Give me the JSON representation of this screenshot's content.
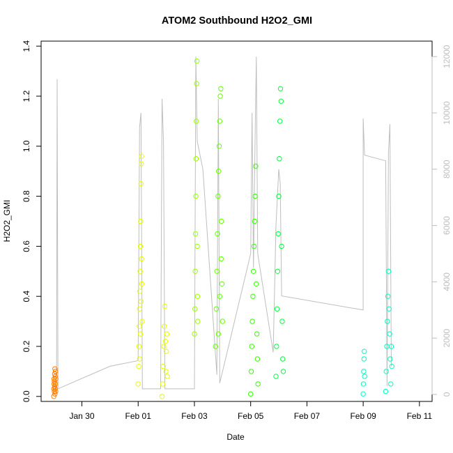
{
  "chart_data": {
    "type": "scatter",
    "title": "ATOM2 Southbound H2O2_GMI",
    "xlabel": "Date",
    "ylabel": "H2O2_GMI",
    "x_ticks": [
      "Jan 30",
      "Feb 01",
      "Feb 03",
      "Feb 05",
      "Feb 07",
      "Feb 09",
      "Feb 11"
    ],
    "x_tick_days": [
      30,
      32,
      34,
      36,
      38,
      40,
      42
    ],
    "xlim_days": [
      28.55,
      42.45
    ],
    "ylim": [
      -0.02,
      1.42
    ],
    "y_ticks": [
      "0.0",
      "0.2",
      "0.4",
      "0.6",
      "0.8",
      "1.0",
      "1.2",
      "1.4"
    ],
    "y_tick_values": [
      0,
      0.2,
      0.4,
      0.6,
      0.8,
      1.0,
      1.2,
      1.4
    ],
    "y2_ticks": [
      "0",
      "2000",
      "4000",
      "6000",
      "8000",
      "10000",
      "12000"
    ],
    "y2_tick_values": [
      0,
      2000,
      4000,
      6000,
      8000,
      10000,
      12000
    ],
    "y2lim": [
      -249,
      12550
    ],
    "grid": false,
    "colors": {
      "altitude_line": "#bebebe",
      "axis_right": "#bdbdbd"
    },
    "series": [
      {
        "color": "#ff7f00",
        "points": [
          [
            29.0,
            0.0
          ],
          [
            29.0,
            0.03
          ],
          [
            29.01,
            0.05
          ],
          [
            29.01,
            0.07
          ],
          [
            29.02,
            0.02
          ],
          [
            29.02,
            0.06
          ],
          [
            29.03,
            0.09
          ],
          [
            29.03,
            0.04
          ],
          [
            29.04,
            0.11
          ],
          [
            29.04,
            0.01
          ],
          [
            29.05,
            0.08
          ],
          [
            29.05,
            0.03
          ],
          [
            29.06,
            0.1
          ],
          [
            29.06,
            0.05
          ],
          [
            29.07,
            0.07
          ],
          [
            29.07,
            0.02
          ]
        ]
      },
      {
        "color": "#e6ff00",
        "points": [
          [
            32.0,
            0.05
          ],
          [
            32.02,
            0.12
          ],
          [
            32.03,
            0.2
          ],
          [
            32.04,
            0.28
          ],
          [
            32.05,
            0.35
          ],
          [
            32.06,
            0.42
          ],
          [
            32.07,
            0.5
          ],
          [
            32.08,
            0.6
          ],
          [
            32.09,
            0.7
          ],
          [
            32.1,
            0.85
          ],
          [
            32.11,
            0.93
          ],
          [
            32.12,
            0.96
          ],
          [
            32.13,
            0.45
          ],
          [
            32.14,
            0.3
          ],
          [
            32.05,
            0.15
          ],
          [
            32.08,
            0.25
          ],
          [
            32.1,
            0.38
          ],
          [
            32.12,
            0.55
          ],
          [
            32.85,
            0.0
          ],
          [
            32.87,
            0.05
          ],
          [
            32.89,
            0.12
          ],
          [
            32.91,
            0.2
          ],
          [
            32.93,
            0.28
          ],
          [
            32.95,
            0.36
          ],
          [
            32.97,
            0.22
          ],
          [
            32.99,
            0.1
          ],
          [
            33.0,
            0.18
          ],
          [
            33.02,
            0.25
          ],
          [
            33.04,
            0.08
          ]
        ]
      },
      {
        "color": "#99ff00",
        "points": [
          [
            34.0,
            0.25
          ],
          [
            34.02,
            0.35
          ],
          [
            34.03,
            0.5
          ],
          [
            34.04,
            0.65
          ],
          [
            34.05,
            0.8
          ],
          [
            34.06,
            0.95
          ],
          [
            34.07,
            1.1
          ],
          [
            34.08,
            1.25
          ],
          [
            34.09,
            1.34
          ],
          [
            34.1,
            0.6
          ],
          [
            34.11,
            0.4
          ],
          [
            34.12,
            0.3
          ]
        ]
      },
      {
        "color": "#66ff00",
        "points": [
          [
            34.75,
            0.2
          ],
          [
            34.78,
            0.35
          ],
          [
            34.8,
            0.5
          ],
          [
            34.82,
            0.65
          ],
          [
            34.84,
            0.8
          ],
          [
            34.86,
            0.9
          ],
          [
            34.88,
            1.0
          ],
          [
            34.9,
            1.1
          ],
          [
            34.92,
            1.2
          ],
          [
            34.94,
            1.23
          ],
          [
            34.96,
            0.7
          ],
          [
            34.98,
            0.45
          ],
          [
            35.0,
            0.3
          ],
          [
            34.85,
            0.25
          ],
          [
            34.9,
            0.4
          ],
          [
            34.95,
            0.55
          ]
        ]
      },
      {
        "color": "#33ff00",
        "points": [
          [
            36.0,
            0.01
          ],
          [
            36.02,
            0.1
          ],
          [
            36.04,
            0.2
          ],
          [
            36.06,
            0.3
          ],
          [
            36.08,
            0.4
          ],
          [
            36.1,
            0.5
          ],
          [
            36.12,
            0.6
          ],
          [
            36.14,
            0.7
          ],
          [
            36.16,
            0.8
          ],
          [
            36.18,
            0.92
          ],
          [
            36.2,
            0.45
          ],
          [
            36.22,
            0.25
          ],
          [
            36.24,
            0.15
          ],
          [
            36.26,
            0.05
          ]
        ]
      },
      {
        "color": "#00ff40",
        "points": [
          [
            36.9,
            0.08
          ],
          [
            36.92,
            0.2
          ],
          [
            36.94,
            0.35
          ],
          [
            36.96,
            0.5
          ],
          [
            36.98,
            0.65
          ],
          [
            37.0,
            0.8
          ],
          [
            37.02,
            0.95
          ],
          [
            37.04,
            1.1
          ],
          [
            37.06,
            1.23
          ],
          [
            37.08,
            1.18
          ],
          [
            37.1,
            0.6
          ],
          [
            37.12,
            0.3
          ],
          [
            37.14,
            0.15
          ],
          [
            37.16,
            0.1
          ]
        ]
      },
      {
        "color": "#00ffc0",
        "points": [
          [
            40.0,
            0.01
          ],
          [
            40.01,
            0.05
          ],
          [
            40.02,
            0.1
          ],
          [
            40.03,
            0.15
          ],
          [
            40.04,
            0.18
          ],
          [
            40.05,
            0.08
          ],
          [
            40.8,
            0.02
          ],
          [
            40.82,
            0.1
          ],
          [
            40.84,
            0.2
          ],
          [
            40.86,
            0.3
          ],
          [
            40.88,
            0.4
          ],
          [
            40.9,
            0.5
          ],
          [
            40.92,
            0.35
          ],
          [
            40.94,
            0.25
          ],
          [
            40.96,
            0.15
          ],
          [
            40.98,
            0.05
          ],
          [
            41.0,
            0.2
          ],
          [
            41.02,
            0.12
          ]
        ]
      }
    ],
    "altitude": [
      [
        29.0,
        500
      ],
      [
        29.05,
        200
      ],
      [
        29.1,
        1000
      ],
      [
        29.12,
        11200
      ],
      [
        29.15,
        200
      ],
      [
        31.0,
        1000
      ],
      [
        32.0,
        1200
      ],
      [
        32.05,
        9500
      ],
      [
        32.1,
        10000
      ],
      [
        32.15,
        200
      ],
      [
        32.8,
        200
      ],
      [
        32.85,
        10500
      ],
      [
        32.9,
        9000
      ],
      [
        32.95,
        200
      ],
      [
        34.0,
        200
      ],
      [
        34.05,
        12000
      ],
      [
        34.1,
        9000
      ],
      [
        34.3,
        8000
      ],
      [
        34.8,
        700
      ],
      [
        34.85,
        10500
      ],
      [
        34.9,
        400
      ],
      [
        36.0,
        5000
      ],
      [
        36.05,
        10000
      ],
      [
        36.1,
        4500
      ],
      [
        36.15,
        8500
      ],
      [
        36.2,
        12000
      ],
      [
        36.25,
        5000
      ],
      [
        36.8,
        1500
      ],
      [
        36.9,
        6000
      ],
      [
        37.0,
        8000
      ],
      [
        37.05,
        7500
      ],
      [
        37.1,
        3500
      ],
      [
        40.0,
        3000
      ],
      [
        40.0,
        9800
      ],
      [
        40.05,
        8500
      ],
      [
        40.8,
        8300
      ],
      [
        40.85,
        300
      ],
      [
        40.9,
        8600
      ],
      [
        40.95,
        9600
      ],
      [
        41.0,
        1000
      ]
    ]
  }
}
